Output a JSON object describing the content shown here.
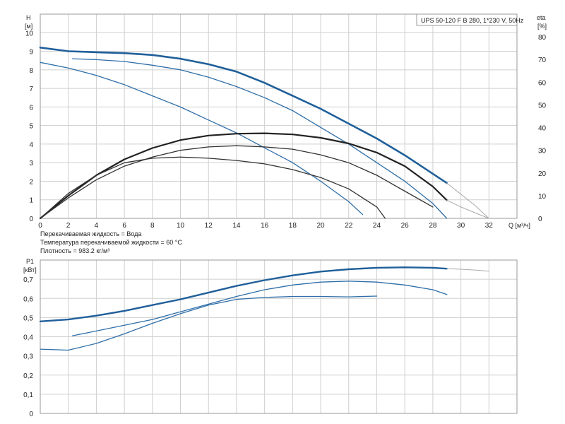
{
  "chart_data": [
    {
      "type": "line",
      "title": "UPS 50-120 F B 280, 1*230 V, 50Hz",
      "ylabel_left": "H",
      "ylabel_left_unit": "[м]",
      "ylabel_right": "eta",
      "ylabel_right_unit": "[%]",
      "xlabel": "Q [м³/ч]",
      "xlim": [
        0,
        34
      ],
      "ylim_left": [
        0,
        11
      ],
      "ylim_right": [
        0,
        90
      ],
      "x_ticks": [
        0,
        2,
        4,
        6,
        8,
        10,
        12,
        14,
        16,
        18,
        20,
        22,
        24,
        26,
        28,
        30,
        32
      ],
      "y_ticks_left": [
        0,
        1,
        2,
        3,
        4,
        5,
        6,
        7,
        8,
        9,
        10
      ],
      "y_ticks_right": [
        0,
        10,
        20,
        30,
        40,
        50,
        60,
        70,
        80
      ],
      "grid": true,
      "series": [
        {
          "kind": "H",
          "color": "#1f5f9a",
          "width": 2.6,
          "x": [
            0,
            2,
            4,
            6,
            8,
            10,
            12,
            14,
            16,
            18,
            20,
            22,
            24,
            26,
            28,
            29
          ],
          "y": [
            9.2,
            9.0,
            8.95,
            8.9,
            8.8,
            8.6,
            8.3,
            7.9,
            7.3,
            6.6,
            5.9,
            5.1,
            4.3,
            3.4,
            2.4,
            1.9
          ]
        },
        {
          "kind": "H",
          "color": "#aaaaaa",
          "width": 1,
          "x": [
            29,
            30,
            31,
            32
          ],
          "y": [
            1.9,
            1.3,
            0.7,
            0
          ]
        },
        {
          "kind": "H",
          "color": "#2f6ea8",
          "width": 1.3,
          "x": [
            2.3,
            4,
            6,
            8,
            10,
            12,
            14,
            16,
            18,
            20,
            22,
            24,
            26,
            28,
            29
          ],
          "y": [
            8.6,
            8.55,
            8.45,
            8.25,
            8.0,
            7.6,
            7.1,
            6.5,
            5.8,
            4.9,
            4.0,
            3.0,
            2.0,
            0.8,
            0
          ]
        },
        {
          "kind": "H",
          "color": "#2f6ea8",
          "width": 1.3,
          "x": [
            0,
            2,
            4,
            6,
            8,
            10,
            12,
            14,
            16,
            18,
            20,
            22,
            23
          ],
          "y": [
            8.4,
            8.1,
            7.7,
            7.2,
            6.6,
            6.0,
            5.3,
            4.6,
            3.8,
            3.0,
            2.0,
            0.9,
            0.2
          ]
        },
        {
          "kind": "eta",
          "color": "#222222",
          "width": 2.2,
          "x": [
            0,
            2,
            4,
            6,
            8,
            10,
            12,
            14,
            16,
            18,
            20,
            22,
            24,
            26,
            28,
            29
          ],
          "y": [
            0,
            10,
            19,
            26,
            31,
            34.5,
            36.5,
            37.3,
            37.5,
            37.0,
            35.5,
            33.0,
            29.0,
            23.0,
            14.0,
            8.0
          ]
        },
        {
          "kind": "eta",
          "color": "#aaaaaa",
          "width": 1,
          "x": [
            29,
            30,
            31,
            32
          ],
          "y": [
            8.0,
            5.0,
            2.5,
            0
          ]
        },
        {
          "kind": "eta",
          "color": "#333333",
          "width": 1.3,
          "x": [
            0,
            2,
            4,
            6,
            8,
            10,
            12,
            14,
            16,
            18,
            20,
            22,
            24,
            26,
            28
          ],
          "y": [
            0,
            9,
            17,
            23,
            27,
            30,
            31.5,
            32,
            31.5,
            30.5,
            28,
            24.5,
            19,
            12,
            5
          ]
        },
        {
          "kind": "eta",
          "color": "#333333",
          "width": 1.3,
          "x": [
            0,
            2,
            4,
            6,
            8,
            10,
            12,
            14,
            16,
            18,
            20,
            22,
            24,
            24.6
          ],
          "y": [
            0,
            11,
            19,
            24.5,
            26.5,
            27,
            26.5,
            25.5,
            24,
            21.5,
            18,
            13,
            5,
            0
          ]
        }
      ],
      "annotations": [
        "Перекачиваемая жидкость = Вода",
        "Температура перекачиваемой жидкости = 60 °C",
        "Плотность = 983.2 кг/м³"
      ]
    },
    {
      "type": "line",
      "ylabel": "P1",
      "ylabel_unit": "[кВт]",
      "xlim": [
        0,
        34
      ],
      "ylim": [
        0,
        0.8
      ],
      "y_ticks": [
        0,
        0.1,
        0.2,
        0.3,
        0.4,
        0.5,
        0.6,
        0.7
      ],
      "y_tick_labels": [
        "0",
        "0,1",
        "0,2",
        "0,3",
        "0,4",
        "0,5",
        "0,6",
        "0,7"
      ],
      "grid": true,
      "series": [
        {
          "color": "#1f5f9a",
          "width": 2.4,
          "x": [
            0,
            2,
            4,
            6,
            8,
            10,
            12,
            14,
            16,
            18,
            20,
            22,
            24,
            26,
            28,
            29
          ],
          "y": [
            0.48,
            0.49,
            0.51,
            0.535,
            0.565,
            0.595,
            0.63,
            0.665,
            0.695,
            0.72,
            0.74,
            0.752,
            0.76,
            0.762,
            0.76,
            0.755
          ]
        },
        {
          "color": "#aaaaaa",
          "width": 1,
          "x": [
            29,
            30,
            31,
            32
          ],
          "y": [
            0.755,
            0.752,
            0.748,
            0.742
          ]
        },
        {
          "color": "#2f6ea8",
          "width": 1.3,
          "x": [
            2.3,
            4,
            6,
            8,
            10,
            12,
            14,
            16,
            18,
            20,
            22,
            24,
            26,
            28,
            29
          ],
          "y": [
            0.405,
            0.43,
            0.46,
            0.49,
            0.53,
            0.57,
            0.61,
            0.645,
            0.67,
            0.685,
            0.69,
            0.685,
            0.67,
            0.645,
            0.62
          ]
        },
        {
          "color": "#2f6ea8",
          "width": 1.3,
          "x": [
            0,
            2,
            4,
            6,
            8,
            10,
            12,
            14,
            16,
            18,
            20,
            22,
            24
          ],
          "y": [
            0.335,
            0.33,
            0.365,
            0.415,
            0.47,
            0.52,
            0.565,
            0.595,
            0.605,
            0.61,
            0.61,
            0.608,
            0.612
          ]
        }
      ]
    }
  ]
}
